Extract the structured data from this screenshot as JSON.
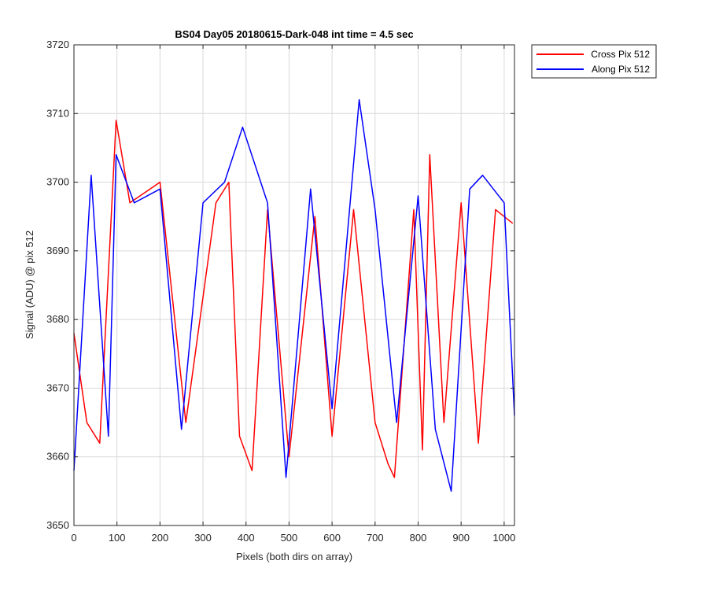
{
  "chart_data": {
    "type": "line",
    "title": "BS04 Day05 20180615-Dark-048 int time = 4.5 sec",
    "xlabel": "Pixels (both dirs on array)",
    "ylabel": "Signal (ADU) @ pix 512",
    "xlim": [
      0,
      1024
    ],
    "ylim": [
      3650,
      3720
    ],
    "xticks": [
      0,
      100,
      200,
      300,
      400,
      500,
      600,
      700,
      800,
      900,
      1000
    ],
    "yticks": [
      3650,
      3660,
      3670,
      3680,
      3690,
      3700,
      3710,
      3720
    ],
    "grid": true,
    "legend_position": "outside-top-right",
    "series": [
      {
        "name": "Cross Pix 512",
        "color": "#ff0000",
        "x": [
          0,
          30,
          60,
          98,
          130,
          200,
          260,
          330,
          360,
          385,
          414,
          450,
          500,
          560,
          600,
          650,
          700,
          730,
          745,
          790,
          810,
          827,
          860,
          900,
          940,
          980,
          1020
        ],
        "y": [
          3678,
          3665,
          3662,
          3709,
          3697,
          3700,
          3665,
          3697,
          3700,
          3663,
          3658,
          3696,
          3660,
          3695,
          3663,
          3696,
          3665,
          3659,
          3657,
          3696,
          3661,
          3704,
          3665,
          3697,
          3662,
          3696,
          3694
        ]
      },
      {
        "name": "Along Pix 512",
        "color": "#0000ff",
        "x": [
          0,
          40,
          80,
          98,
          140,
          200,
          250,
          300,
          350,
          392,
          450,
          493,
          550,
          600,
          663,
          700,
          750,
          800,
          840,
          877,
          920,
          950,
          1000,
          1024
        ],
        "y": [
          3658,
          3701,
          3663,
          3704,
          3697,
          3699,
          3664,
          3697,
          3700,
          3708,
          3697,
          3657,
          3699,
          3667,
          3712,
          3696,
          3665,
          3698,
          3664,
          3655,
          3699,
          3701,
          3697,
          3666
        ]
      }
    ]
  }
}
